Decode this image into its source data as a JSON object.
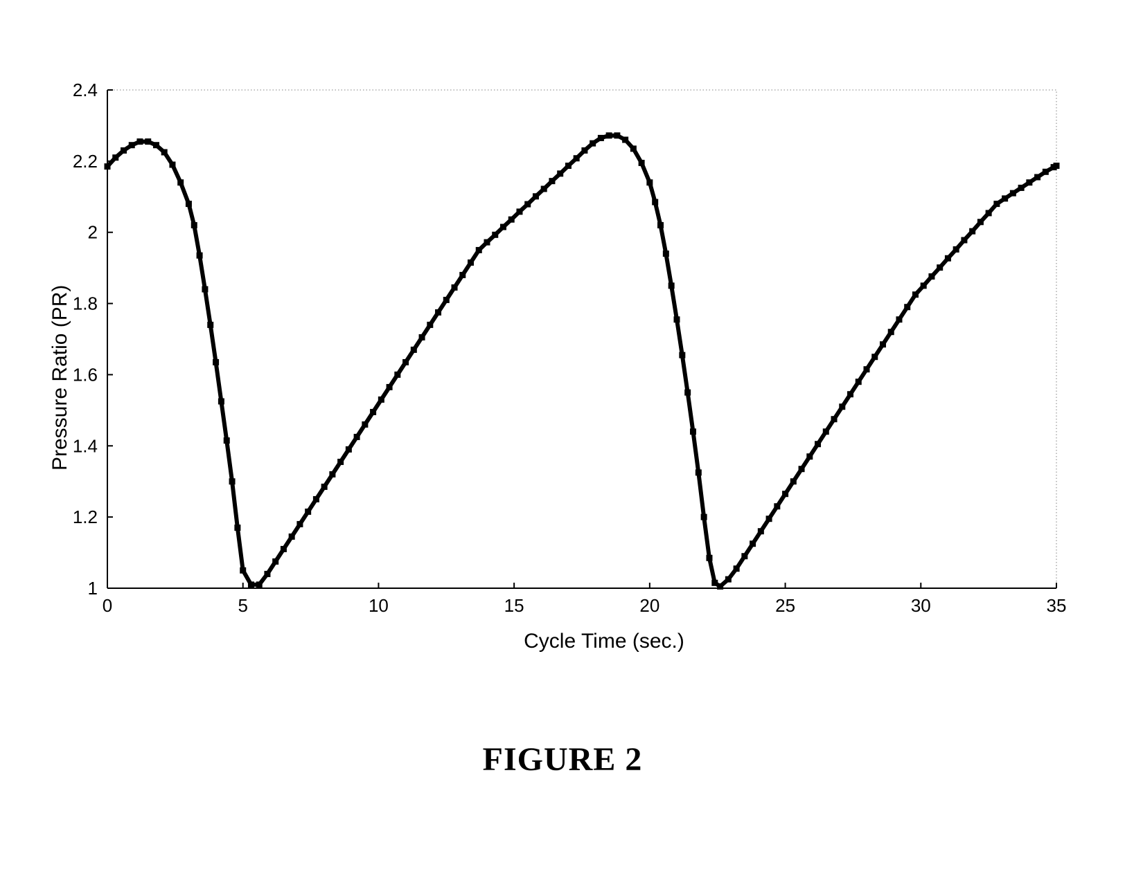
{
  "figure_caption": "FIGURE 2",
  "chart": {
    "type": "line",
    "xlabel": "Cycle Time (sec.)",
    "ylabel": "Pressure Ratio (PR)",
    "label_fontsize_pt": 22,
    "tick_fontsize_pt": 19,
    "axis_color": "#000000",
    "border_color": "#808080",
    "border_style": "dotted",
    "background_color": "#ffffff",
    "line_color": "#000000",
    "marker_color": "#000000",
    "marker_shape": "square",
    "marker_size": 9,
    "line_width": 6,
    "grid": false,
    "xlim": [
      0,
      35
    ],
    "ylim": [
      1,
      2.4
    ],
    "xtick_step": 5,
    "ytick_step": 0.2,
    "xticks": [
      0,
      5,
      10,
      15,
      20,
      25,
      30,
      35
    ],
    "yticks": [
      1,
      1.2,
      1.4,
      1.6,
      1.8,
      2,
      2.2,
      2.4
    ],
    "ytick_labels": [
      "1",
      "1.2",
      "1.4",
      "1.6",
      "1.8",
      "2",
      "2.2",
      "2.4"
    ],
    "xtick_labels": [
      "0",
      "5",
      "10",
      "15",
      "20",
      "25",
      "30",
      "35"
    ],
    "plot_aspect_w": 1370,
    "plot_aspect_h": 720,
    "plot_left_pad": 105,
    "plot_top_pad": 10,
    "data": {
      "x": [
        0,
        0.3,
        0.6,
        0.9,
        1.2,
        1.5,
        1.8,
        2.1,
        2.4,
        2.7,
        3.0,
        3.2,
        3.4,
        3.6,
        3.8,
        4.0,
        4.2,
        4.4,
        4.6,
        4.8,
        5.0,
        5.3,
        5.6,
        5.9,
        6.2,
        6.5,
        6.8,
        7.1,
        7.4,
        7.7,
        8.0,
        8.3,
        8.6,
        8.9,
        9.2,
        9.5,
        9.8,
        10.1,
        10.4,
        10.7,
        11.0,
        11.3,
        11.6,
        11.9,
        12.2,
        12.5,
        12.8,
        13.1,
        13.4,
        13.7,
        14.0,
        14.3,
        14.6,
        14.9,
        15.2,
        15.5,
        15.8,
        16.1,
        16.4,
        16.7,
        17.0,
        17.3,
        17.6,
        17.9,
        18.2,
        18.5,
        18.8,
        19.1,
        19.4,
        19.7,
        20.0,
        20.2,
        20.4,
        20.6,
        20.8,
        21.0,
        21.2,
        21.4,
        21.6,
        21.8,
        22.0,
        22.2,
        22.4,
        22.6,
        22.9,
        23.2,
        23.5,
        23.8,
        24.1,
        24.4,
        24.7,
        25.0,
        25.3,
        25.6,
        25.9,
        26.2,
        26.5,
        26.8,
        27.1,
        27.4,
        27.7,
        28.0,
        28.3,
        28.6,
        28.9,
        29.2,
        29.5,
        29.8,
        30.1,
        30.4,
        30.7,
        31.0,
        31.3,
        31.6,
        31.9,
        32.2,
        32.5,
        32.8,
        33.1,
        33.4,
        33.7,
        34.0,
        34.3,
        34.6,
        34.9,
        35.0
      ],
      "y": [
        2.185,
        2.21,
        2.23,
        2.245,
        2.255,
        2.255,
        2.245,
        2.225,
        2.19,
        2.14,
        2.08,
        2.02,
        1.935,
        1.84,
        1.74,
        1.635,
        1.525,
        1.415,
        1.3,
        1.17,
        1.05,
        1.01,
        1.01,
        1.04,
        1.075,
        1.11,
        1.145,
        1.18,
        1.215,
        1.25,
        1.285,
        1.32,
        1.355,
        1.39,
        1.425,
        1.46,
        1.495,
        1.53,
        1.565,
        1.6,
        1.635,
        1.67,
        1.705,
        1.74,
        1.775,
        1.81,
        1.845,
        1.88,
        1.915,
        1.95,
        1.972,
        1.993,
        2.015,
        2.036,
        2.058,
        2.079,
        2.101,
        2.122,
        2.144,
        2.165,
        2.187,
        2.208,
        2.23,
        2.25,
        2.265,
        2.272,
        2.272,
        2.26,
        2.235,
        2.195,
        2.14,
        2.085,
        2.02,
        1.94,
        1.85,
        1.755,
        1.655,
        1.55,
        1.44,
        1.325,
        1.2,
        1.085,
        1.015,
        1.005,
        1.025,
        1.055,
        1.09,
        1.125,
        1.16,
        1.195,
        1.23,
        1.265,
        1.3,
        1.335,
        1.37,
        1.405,
        1.44,
        1.475,
        1.51,
        1.545,
        1.58,
        1.615,
        1.65,
        1.685,
        1.72,
        1.755,
        1.79,
        1.825,
        1.85,
        1.876,
        1.901,
        1.927,
        1.952,
        1.978,
        2.003,
        2.029,
        2.054,
        2.08,
        2.095,
        2.11,
        2.125,
        2.14,
        2.155,
        2.17,
        2.183,
        2.187
      ]
    }
  }
}
